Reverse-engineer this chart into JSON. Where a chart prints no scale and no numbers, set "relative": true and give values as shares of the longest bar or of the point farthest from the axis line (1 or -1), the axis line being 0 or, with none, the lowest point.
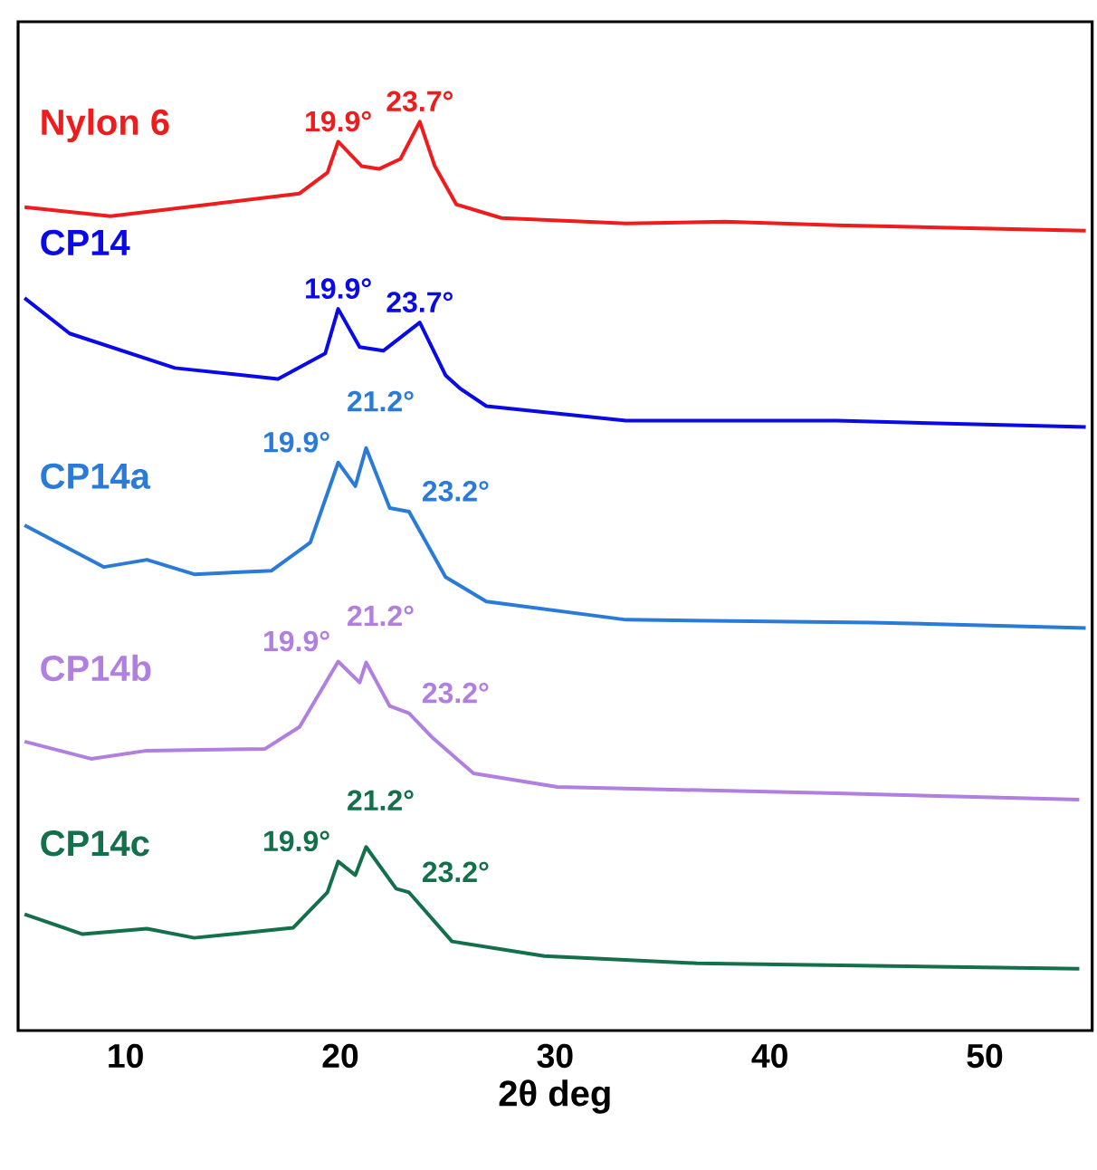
{
  "chart_data": {
    "type": "line",
    "relative": true,
    "xlabel": "2θ deg",
    "xlim": [
      5,
      55
    ],
    "xticks": [
      10,
      20,
      30,
      40,
      50
    ],
    "series": [
      {
        "name": "Nylon 6",
        "color": "#ee1c1c",
        "x": [
          5.3,
          9.3,
          13.9,
          18.1,
          19.4,
          19.9,
          21.0,
          21.8,
          22.8,
          23.7,
          24.4,
          25.4,
          27.5,
          33.3,
          37.9,
          43.1,
          54.7
        ],
        "values": [
          0.906,
          0.896,
          0.909,
          0.921,
          0.944,
          0.978,
          0.951,
          0.948,
          0.959,
          1.0,
          0.951,
          0.909,
          0.894,
          0.888,
          0.89,
          0.886,
          0.88
        ]
      },
      {
        "name": "CP14",
        "color": "#0a0ae6",
        "x": [
          5.3,
          7.4,
          12.3,
          17.1,
          19.3,
          19.9,
          20.9,
          22.0,
          23.7,
          24.9,
          25.6,
          26.8,
          33.3,
          43.1,
          54.7
        ],
        "values": [
          0.806,
          0.767,
          0.729,
          0.717,
          0.745,
          0.794,
          0.752,
          0.748,
          0.779,
          0.721,
          0.706,
          0.687,
          0.671,
          0.671,
          0.664
        ]
      },
      {
        "name": "CP14a",
        "color": "#2a7bd8",
        "x": [
          5.3,
          9.0,
          11.0,
          13.2,
          16.8,
          18.6,
          19.9,
          20.7,
          21.2,
          22.3,
          23.2,
          24.9,
          26.8,
          33.3,
          44.7,
          54.7
        ],
        "values": [
          0.556,
          0.51,
          0.518,
          0.502,
          0.506,
          0.537,
          0.625,
          0.599,
          0.641,
          0.575,
          0.571,
          0.499,
          0.472,
          0.452,
          0.449,
          0.443
        ]
      },
      {
        "name": "CP14b",
        "color": "#b07fe0",
        "x": [
          5.3,
          8.4,
          11.0,
          16.5,
          18.1,
          19.9,
          20.9,
          21.2,
          22.3,
          23.2,
          24.3,
          26.2,
          30.1,
          43.1,
          54.4
        ],
        "values": [
          0.318,
          0.299,
          0.308,
          0.31,
          0.334,
          0.406,
          0.383,
          0.405,
          0.357,
          0.349,
          0.322,
          0.283,
          0.268,
          0.261,
          0.254
        ]
      },
      {
        "name": "CP14c",
        "color": "#14704a",
        "x": [
          5.3,
          8.0,
          11.0,
          13.2,
          17.8,
          19.4,
          19.9,
          20.7,
          21.2,
          22.6,
          23.2,
          25.2,
          29.5,
          36.6,
          54.4
        ],
        "values": [
          0.128,
          0.106,
          0.112,
          0.102,
          0.113,
          0.152,
          0.186,
          0.171,
          0.202,
          0.156,
          0.152,
          0.098,
          0.082,
          0.074,
          0.068
        ]
      }
    ],
    "annotations": [
      {
        "text": "19.9°",
        "x": 19.9,
        "y": 0.978
      },
      {
        "text": "23.7°",
        "x": 23.7,
        "y": 1.0
      },
      {
        "text": "19.9°",
        "x": 19.9,
        "y": 0.794
      },
      {
        "text": "23.7°",
        "x": 23.7,
        "y": 0.779
      },
      {
        "text": "19.9°",
        "x": 19.9,
        "y": 0.625
      },
      {
        "text": "21.2°",
        "x": 21.2,
        "y": 0.641
      },
      {
        "text": "23.2°",
        "x": 23.2,
        "y": 0.571
      },
      {
        "text": "19.9°",
        "x": 19.9,
        "y": 0.406
      },
      {
        "text": "21.2°",
        "x": 21.2,
        "y": 0.405
      },
      {
        "text": "23.2°",
        "x": 23.2,
        "y": 0.349
      },
      {
        "text": "19.9°",
        "x": 19.9,
        "y": 0.186
      },
      {
        "text": "21.2°",
        "x": 21.2,
        "y": 0.202
      },
      {
        "text": "23.2°",
        "x": 23.2,
        "y": 0.152
      }
    ]
  }
}
